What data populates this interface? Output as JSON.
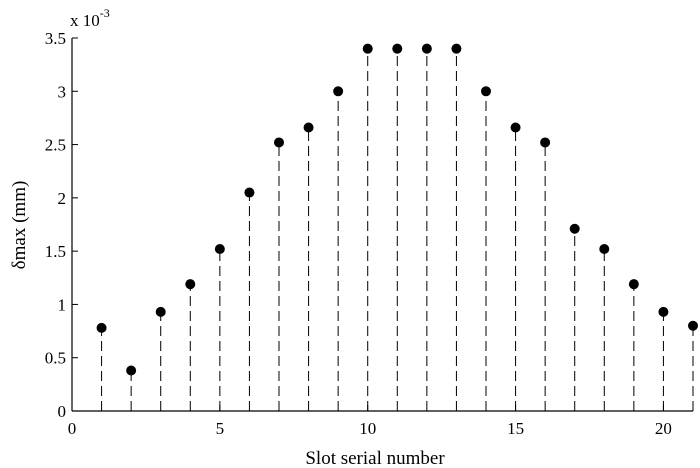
{
  "chart_data": {
    "type": "stem",
    "xlabel": "Slot serial number",
    "ylabel": "δmax (mm)",
    "y_multiplier_label": "x 10",
    "y_multiplier_exponent": "-3",
    "xlim": [
      0,
      21
    ],
    "ylim": [
      0,
      3.5
    ],
    "grid": false,
    "x_ticks": [
      "0",
      "5",
      "10",
      "15",
      "20"
    ],
    "y_ticks": [
      "0",
      "0.5",
      "1",
      "1.5",
      "2",
      "2.5",
      "3",
      "3.5"
    ],
    "x": [
      1,
      2,
      3,
      4,
      5,
      6,
      7,
      8,
      9,
      10,
      11,
      12,
      13,
      14,
      15,
      16,
      17,
      18,
      19,
      20,
      21
    ],
    "values": [
      0.78,
      0.38,
      0.93,
      1.19,
      1.52,
      2.05,
      2.52,
      2.66,
      3.0,
      3.4,
      3.4,
      3.4,
      3.4,
      3.0,
      2.66,
      2.52,
      1.71,
      1.52,
      1.19,
      0.93,
      0.8
    ],
    "colors": {
      "marker": "#000000",
      "stem": "#000000",
      "axis": "#000000"
    }
  }
}
